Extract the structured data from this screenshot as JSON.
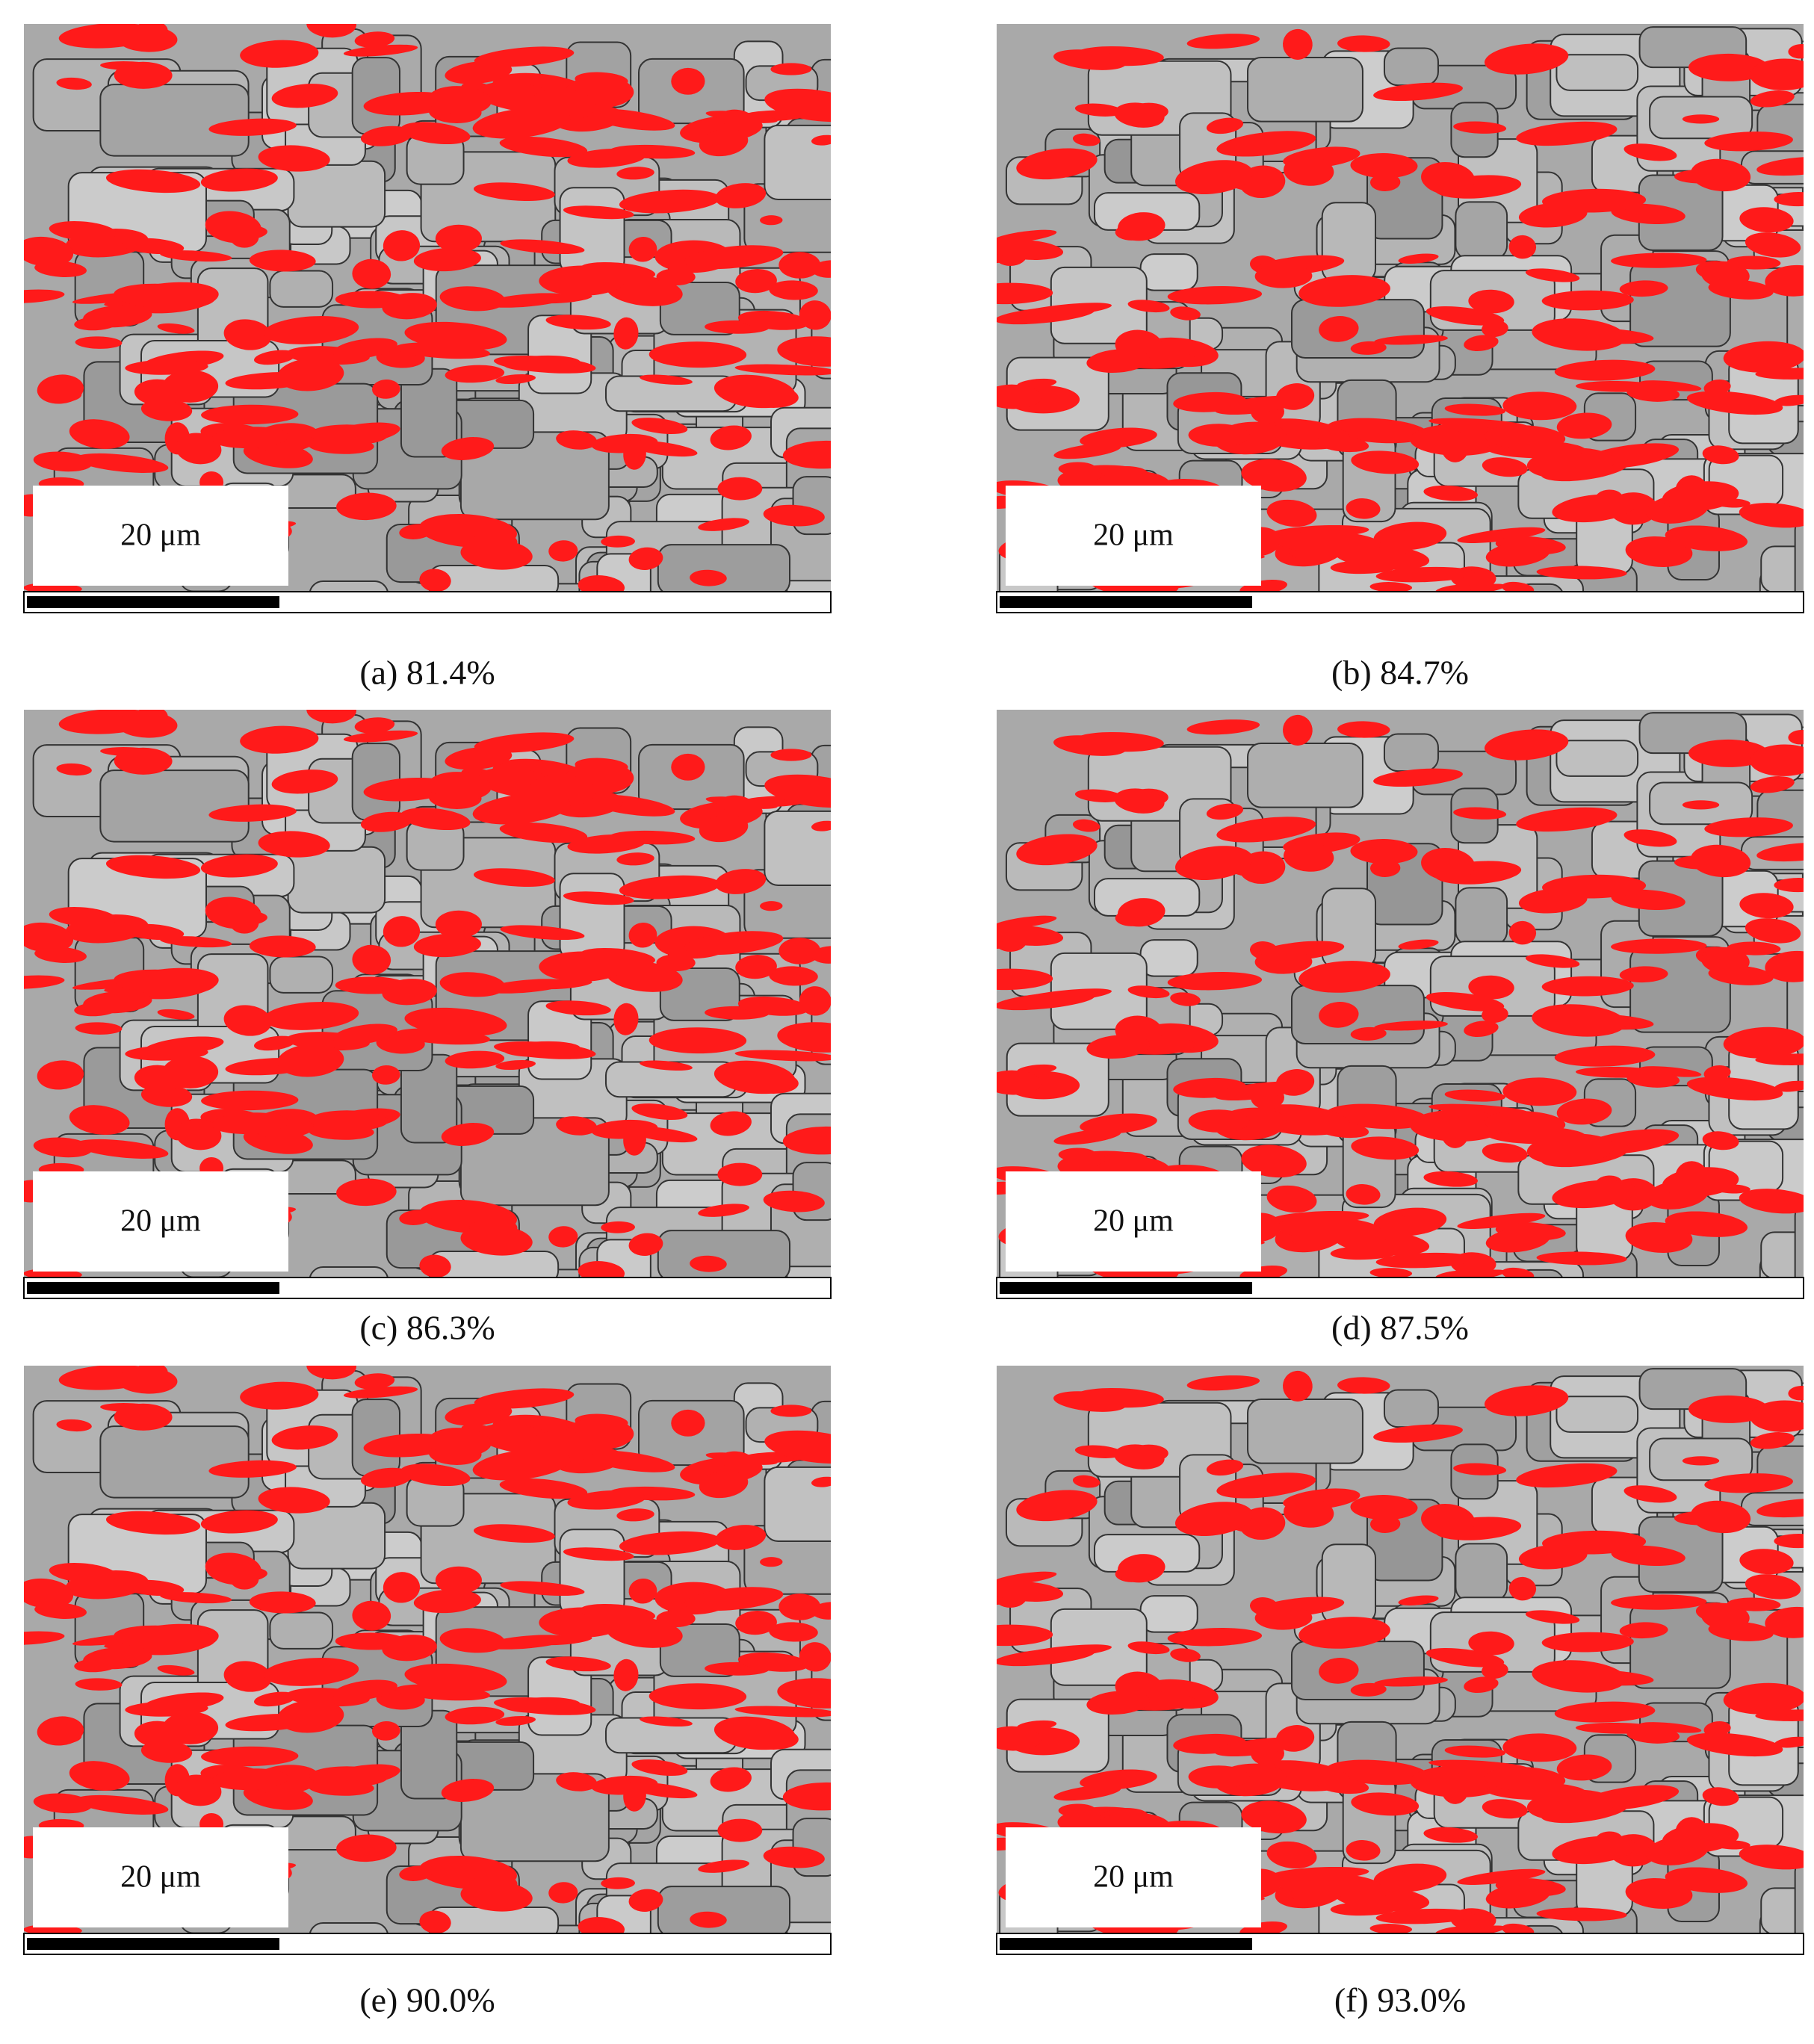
{
  "panels": [
    {
      "scale_label": "20 μm",
      "caption": "(a) 81.4%"
    },
    {
      "scale_label": "20 μm",
      "caption": "(b) 84.7%"
    },
    {
      "scale_label": "20 μm",
      "caption": "(c) 86.3%"
    },
    {
      "scale_label": "20 μm",
      "caption": "(d) 87.5%"
    },
    {
      "scale_label": "20 μm",
      "caption": "(e) 90.0%"
    },
    {
      "scale_label": "20 μm",
      "caption": "(f) 93.0%"
    }
  ]
}
